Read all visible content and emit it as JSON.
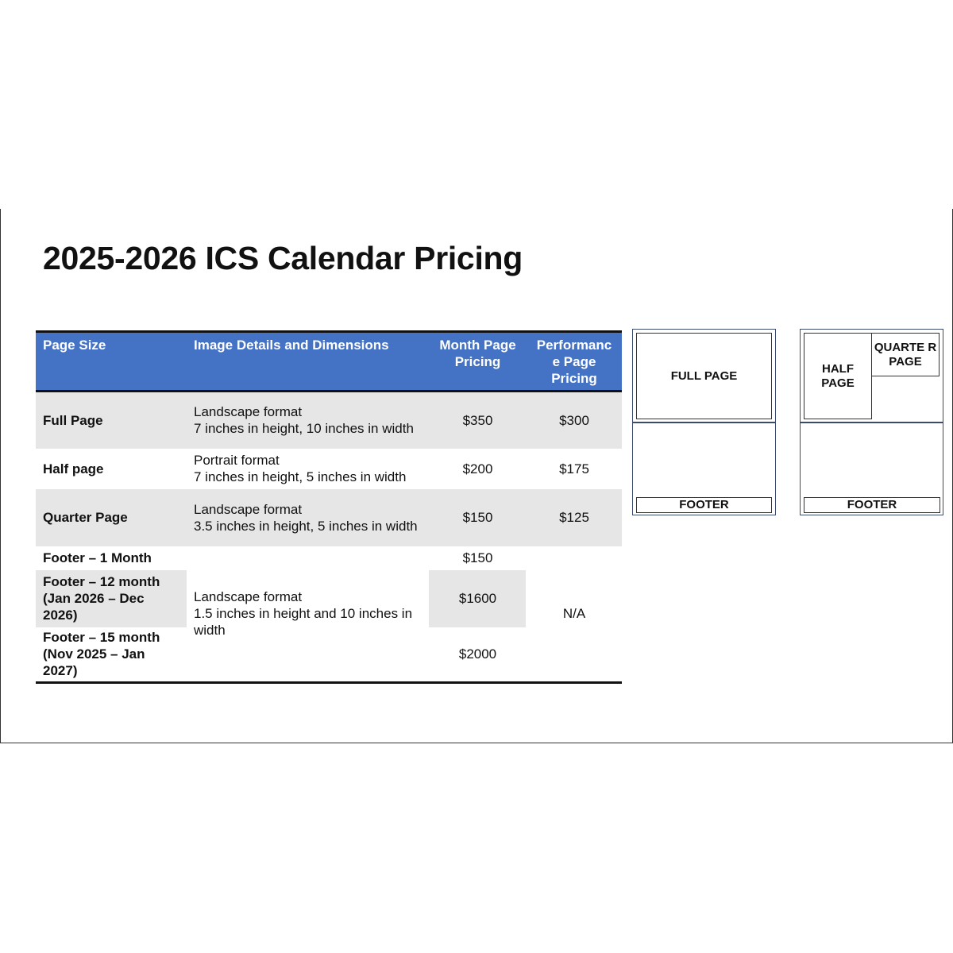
{
  "title": "2025-2026 ICS Calendar Pricing",
  "table": {
    "headers": [
      "Page Size",
      "Image Details and Dimensions",
      "Month Page Pricing",
      "Performanc e Page Pricing"
    ],
    "rows": [
      {
        "size": "Full Page",
        "details": [
          "Landscape format",
          "7 inches in height, 10 inches in width"
        ],
        "month": "$350",
        "performance": "$300"
      },
      {
        "size": "Half page",
        "details": [
          "Portrait format",
          "7 inches in height, 5 inches in width"
        ],
        "month": "$200",
        "performance": "$175"
      },
      {
        "size": "Quarter Page",
        "details": [
          "Landscape format",
          "3.5 inches in height, 5 inches in width"
        ],
        "month": "$150",
        "performance": "$125"
      },
      {
        "size": "Footer – 1 Month",
        "month": "$150"
      },
      {
        "size": "Footer – 12 month (Jan 2026 – Dec 2026)",
        "month": "$1600"
      },
      {
        "size": "Footer – 15 month (Nov 2025  – Jan 2027)",
        "month": "$2000"
      }
    ],
    "footer_details": [
      "Landscape format",
      "1.5 inches in height and 10 inches in width"
    ],
    "footer_performance": "N/A"
  },
  "diagrams": {
    "full_page": "FULL PAGE",
    "half_page": "HALF PAGE",
    "quarter_page": "QUARTE R PAGE",
    "footer": "FOOTER"
  },
  "colors": {
    "header_bg": "#4472c4",
    "row_shade": "#e6e6e6",
    "diagram_border": "#3c4a6e"
  }
}
